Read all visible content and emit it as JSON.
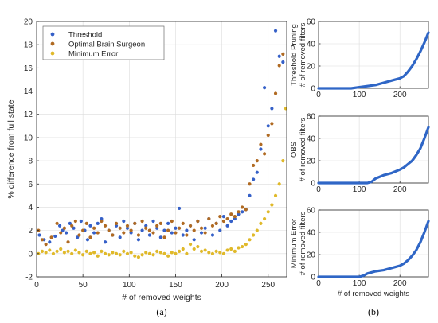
{
  "colors": {
    "threshold": "#3560c8",
    "obs": "#b06a22",
    "minerr": "#e0b92a",
    "curve": "#2f66c6",
    "grid": "#dcdcdc",
    "axis": "#262626"
  },
  "chart_data": [
    {
      "type": "scatter",
      "subfigure_label": "(a)",
      "xlabel": "# of removed weights",
      "ylabel": "% difference from full state",
      "xlim": [
        0,
        270
      ],
      "ylim": [
        -2,
        20
      ],
      "xticks": [
        0,
        50,
        100,
        150,
        200,
        250
      ],
      "yticks": [
        -2,
        0,
        2,
        4,
        6,
        8,
        10,
        12,
        14,
        16,
        18,
        20
      ],
      "grid": true,
      "legend_position": "top-left",
      "series": [
        {
          "name": "Threshold",
          "color_key": "threshold",
          "x": [
            3,
            8,
            14,
            20,
            25,
            28,
            32,
            36,
            40,
            44,
            48,
            52,
            55,
            58,
            62,
            66,
            70,
            74,
            78,
            82,
            86,
            90,
            94,
            98,
            102,
            106,
            110,
            114,
            118,
            122,
            126,
            130,
            134,
            138,
            142,
            146,
            150,
            154,
            158,
            162,
            166,
            170,
            174,
            178,
            182,
            186,
            190,
            194,
            198,
            202,
            206,
            210,
            214,
            218,
            222,
            226,
            230,
            234,
            238,
            242,
            246,
            250,
            254,
            258,
            262,
            266
          ],
          "y": [
            1.6,
            1.2,
            1.0,
            1.5,
            2.4,
            2.0,
            1.8,
            2.6,
            2.2,
            1.4,
            2.8,
            2.0,
            1.2,
            2.4,
            1.8,
            2.6,
            3.0,
            1.0,
            2.0,
            1.6,
            2.4,
            1.4,
            2.8,
            2.2,
            1.8,
            2.6,
            1.2,
            2.0,
            2.4,
            1.6,
            2.8,
            2.2,
            1.4,
            2.0,
            2.6,
            1.8,
            2.2,
            3.9,
            1.6,
            2.0,
            2.4,
            1.2,
            2.8,
            1.8,
            2.2,
            3.0,
            1.6,
            2.6,
            2.0,
            3.2,
            2.4,
            2.8,
            3.0,
            3.4,
            3.6,
            3.8,
            5.0,
            6.4,
            7.0,
            9.0,
            14.3,
            11.0,
            12.5,
            19.2,
            17.0,
            16.5
          ]
        },
        {
          "name": "Optimal Brain Surgeon",
          "color_key": "obs",
          "x": [
            2,
            6,
            10,
            16,
            22,
            26,
            30,
            34,
            38,
            42,
            46,
            50,
            54,
            58,
            62,
            66,
            70,
            74,
            78,
            82,
            86,
            90,
            94,
            98,
            102,
            106,
            110,
            114,
            118,
            122,
            126,
            130,
            134,
            138,
            142,
            146,
            150,
            154,
            158,
            162,
            166,
            170,
            174,
            178,
            182,
            186,
            190,
            194,
            198,
            202,
            206,
            210,
            214,
            218,
            222,
            226,
            230,
            234,
            238,
            242,
            246,
            250,
            254,
            258,
            262,
            266
          ],
          "y": [
            2.0,
            1.2,
            0.8,
            1.4,
            2.6,
            1.8,
            2.2,
            1.0,
            2.4,
            2.8,
            1.6,
            2.0,
            2.6,
            1.4,
            2.2,
            1.8,
            2.8,
            2.4,
            2.0,
            1.6,
            2.6,
            2.2,
            1.8,
            2.4,
            2.0,
            2.6,
            1.6,
            2.8,
            2.2,
            2.0,
            1.8,
            2.4,
            2.6,
            1.4,
            2.0,
            2.8,
            1.8,
            2.2,
            2.6,
            1.6,
            2.4,
            2.0,
            2.8,
            2.2,
            1.8,
            3.0,
            2.4,
            2.6,
            3.2,
            2.8,
            3.0,
            3.4,
            3.2,
            3.6,
            4.0,
            3.8,
            6.0,
            7.6,
            8.0,
            9.4,
            8.6,
            10.2,
            11.2,
            13.8,
            16.2,
            17.2
          ]
        },
        {
          "name": "Minimum Error",
          "color_key": "minerr",
          "x": [
            2,
            6,
            10,
            14,
            18,
            22,
            26,
            30,
            34,
            38,
            42,
            46,
            50,
            54,
            58,
            62,
            66,
            70,
            74,
            78,
            82,
            86,
            90,
            94,
            98,
            102,
            106,
            110,
            114,
            118,
            122,
            126,
            130,
            134,
            138,
            142,
            146,
            150,
            154,
            158,
            162,
            166,
            170,
            174,
            178,
            182,
            186,
            190,
            194,
            198,
            202,
            206,
            210,
            214,
            218,
            222,
            226,
            230,
            234,
            238,
            242,
            246,
            250,
            254,
            258,
            262,
            266,
            269
          ],
          "y": [
            0.0,
            0.2,
            0.1,
            0.3,
            0.0,
            0.2,
            0.4,
            0.1,
            0.2,
            0.0,
            0.3,
            0.1,
            -0.1,
            0.2,
            0.0,
            0.1,
            -0.2,
            0.2,
            0.0,
            -0.1,
            0.1,
            0.0,
            -0.1,
            0.2,
            0.0,
            0.1,
            -0.2,
            -0.3,
            -0.1,
            0.1,
            0.0,
            -0.1,
            0.2,
            0.1,
            0.0,
            -0.2,
            0.1,
            0.0,
            0.2,
            0.4,
            0.0,
            0.8,
            0.4,
            0.6,
            0.2,
            0.3,
            0.1,
            0.0,
            0.2,
            0.1,
            0.0,
            0.3,
            0.4,
            0.2,
            0.5,
            0.6,
            0.8,
            1.2,
            1.6,
            2.0,
            2.6,
            3.0,
            3.6,
            4.2,
            5.0,
            6.0,
            8.0,
            12.5
          ]
        }
      ]
    },
    {
      "type": "line",
      "subfigure_label": "(b)",
      "ylabel": [
        "Threshold Pruning",
        "# of removed filters"
      ],
      "xlim": [
        0,
        270
      ],
      "ylim": [
        0,
        60
      ],
      "xticks": [
        0,
        100,
        200
      ],
      "yticks": [
        0,
        20,
        40,
        60
      ],
      "grid": true,
      "x": [
        0,
        20,
        40,
        60,
        80,
        100,
        120,
        140,
        160,
        180,
        200,
        210,
        220,
        230,
        240,
        250,
        260,
        270
      ],
      "y": [
        0,
        0,
        0,
        0,
        0,
        1,
        2,
        3,
        5,
        7,
        9,
        11,
        15,
        20,
        26,
        33,
        41,
        50
      ]
    },
    {
      "type": "line",
      "ylabel": [
        "OBS",
        "# of removed filters"
      ],
      "xlim": [
        0,
        270
      ],
      "ylim": [
        0,
        60
      ],
      "xticks": [
        0,
        100,
        200
      ],
      "yticks": [
        0,
        20,
        40,
        60
      ],
      "grid": true,
      "x": [
        0,
        20,
        40,
        60,
        80,
        100,
        120,
        130,
        140,
        160,
        180,
        200,
        210,
        220,
        230,
        240,
        250,
        260,
        270
      ],
      "y": [
        0,
        0,
        0,
        0,
        0,
        0,
        0,
        1,
        4,
        7,
        9,
        12,
        14,
        17,
        20,
        25,
        31,
        40,
        50
      ]
    },
    {
      "type": "line",
      "ylabel": [
        "Minimum Error",
        "# of removed filters"
      ],
      "xlabel": "# of removed weights",
      "xlim": [
        0,
        270
      ],
      "ylim": [
        0,
        60
      ],
      "xticks": [
        0,
        100,
        200
      ],
      "yticks": [
        0,
        20,
        40,
        60
      ],
      "grid": true,
      "x": [
        0,
        20,
        40,
        60,
        80,
        100,
        110,
        120,
        140,
        160,
        180,
        200,
        210,
        220,
        230,
        240,
        250,
        260,
        270
      ],
      "y": [
        0,
        0,
        0,
        0,
        0,
        0,
        1,
        3,
        5,
        6,
        8,
        10,
        12,
        15,
        19,
        24,
        31,
        40,
        50
      ]
    }
  ]
}
